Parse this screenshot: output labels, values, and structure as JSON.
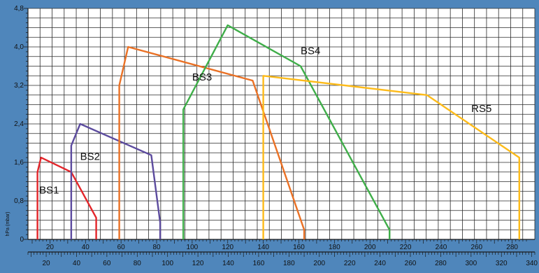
{
  "chart_data": {
    "type": "line",
    "title": "",
    "ylabel": "hPa (mbar)",
    "xlabel": "",
    "ylim": [
      0,
      4.8
    ],
    "yticks": [
      "0",
      "0,8",
      "1,6",
      "2,4",
      "3,2",
      "4,0",
      "4,8"
    ],
    "ytick_values": [
      0,
      0.8,
      1.6,
      2.4,
      3.2,
      4.0,
      4.8
    ],
    "x_top_ticks": [
      20,
      40,
      60,
      80,
      100,
      120,
      140,
      160,
      180,
      200,
      220,
      240,
      260,
      280
    ],
    "x_top_range": [
      10,
      288
    ],
    "x_bottom_ticks": [
      20,
      40,
      60,
      80,
      100,
      120,
      140,
      160,
      180,
      200,
      220,
      240,
      260,
      280,
      300,
      320,
      340
    ],
    "x_bottom_range": [
      8,
      342
    ],
    "grid": true,
    "series": [
      {
        "name": "BS1",
        "color": "#e3262b",
        "label_pos": [
          14,
          0.95
        ],
        "points": [
          [
            13,
            0
          ],
          [
            13,
            1.4
          ],
          [
            15,
            1.7
          ],
          [
            32,
            1.4
          ],
          [
            46,
            0.45
          ],
          [
            46,
            0
          ]
        ]
      },
      {
        "name": "BS2",
        "color": "#5c4b9e",
        "label_pos": [
          37,
          1.65
        ],
        "points": [
          [
            32,
            0
          ],
          [
            32,
            1.95
          ],
          [
            37,
            2.4
          ],
          [
            77,
            1.75
          ],
          [
            82,
            0.35
          ],
          [
            82,
            0
          ]
        ]
      },
      {
        "name": "BS3",
        "color": "#ea7125",
        "label_pos": [
          100,
          3.3
        ],
        "points": [
          [
            59,
            0
          ],
          [
            59,
            3.2
          ],
          [
            64,
            4.0
          ],
          [
            134,
            3.3
          ],
          [
            163,
            0.2
          ],
          [
            163,
            0
          ]
        ]
      },
      {
        "name": "BS4",
        "color": "#3fae49",
        "label_pos": [
          161,
          3.85
        ],
        "points": [
          [
            95,
            0
          ],
          [
            95,
            2.7
          ],
          [
            120,
            4.45
          ],
          [
            161,
            3.6
          ],
          [
            211,
            0.2
          ],
          [
            211,
            0
          ]
        ]
      },
      {
        "name": "RS5",
        "color": "#fdbb1a",
        "label_pos": [
          257,
          2.65
        ],
        "points": [
          [
            140,
            0
          ],
          [
            140,
            3.4
          ],
          [
            232,
            3.0
          ],
          [
            284,
            1.7
          ],
          [
            284,
            0
          ]
        ]
      }
    ]
  }
}
